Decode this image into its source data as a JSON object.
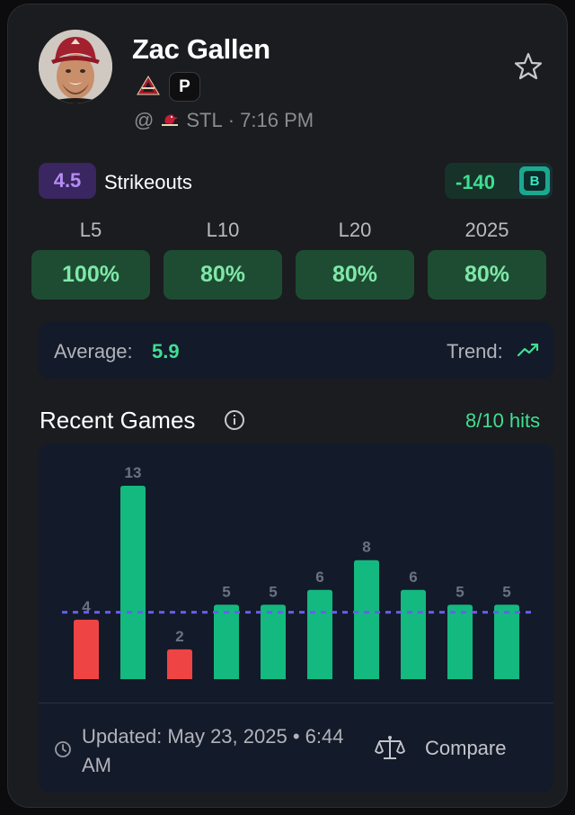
{
  "player": {
    "name": "Zac Gallen",
    "position": "P",
    "matchup_prefix": "@",
    "opponent": "STL",
    "game_time": "· 7:16 PM",
    "team_logo_icon": "diamondbacks-logo-icon",
    "opponent_logo_icon": "cardinals-logo-icon"
  },
  "prop": {
    "line": "4.5",
    "market": "Strikeouts",
    "odds": "-140",
    "book_icon": "sportsbook-b-logo-icon"
  },
  "splits": [
    {
      "label": "L5",
      "value": "100%"
    },
    {
      "label": "L10",
      "value": "80%"
    },
    {
      "label": "L20",
      "value": "80%"
    },
    {
      "label": "2025",
      "value": "80%"
    }
  ],
  "average": {
    "label": "Average:",
    "value": "5.9"
  },
  "trend": {
    "label": "Trend:",
    "icon": "trending-up-icon"
  },
  "recent_games": {
    "title": "Recent Games",
    "hits": "8/10 hits"
  },
  "chart_data": {
    "type": "bar",
    "values": [
      4,
      13,
      2,
      5,
      5,
      6,
      8,
      6,
      5,
      5
    ],
    "data_labels": [
      "4",
      "13",
      "2",
      "5",
      "5",
      "6",
      "8",
      "6",
      "5",
      "5"
    ],
    "threshold": 4.5,
    "ylim": [
      0,
      13
    ],
    "colors": {
      "hit": "#14b97f",
      "miss": "#ef4444",
      "threshold_line": "#6a5cf0",
      "label": "#6b7280"
    }
  },
  "footer": {
    "updated": "Updated: May 23, 2025 • 6:44 AM",
    "compare_label": "Compare"
  },
  "colors": {
    "accent_green": "#3fdf93",
    "accent_purple": "#b68cf5",
    "card_bg": "#1b1c1f",
    "panel_bg": "#131a2a"
  }
}
